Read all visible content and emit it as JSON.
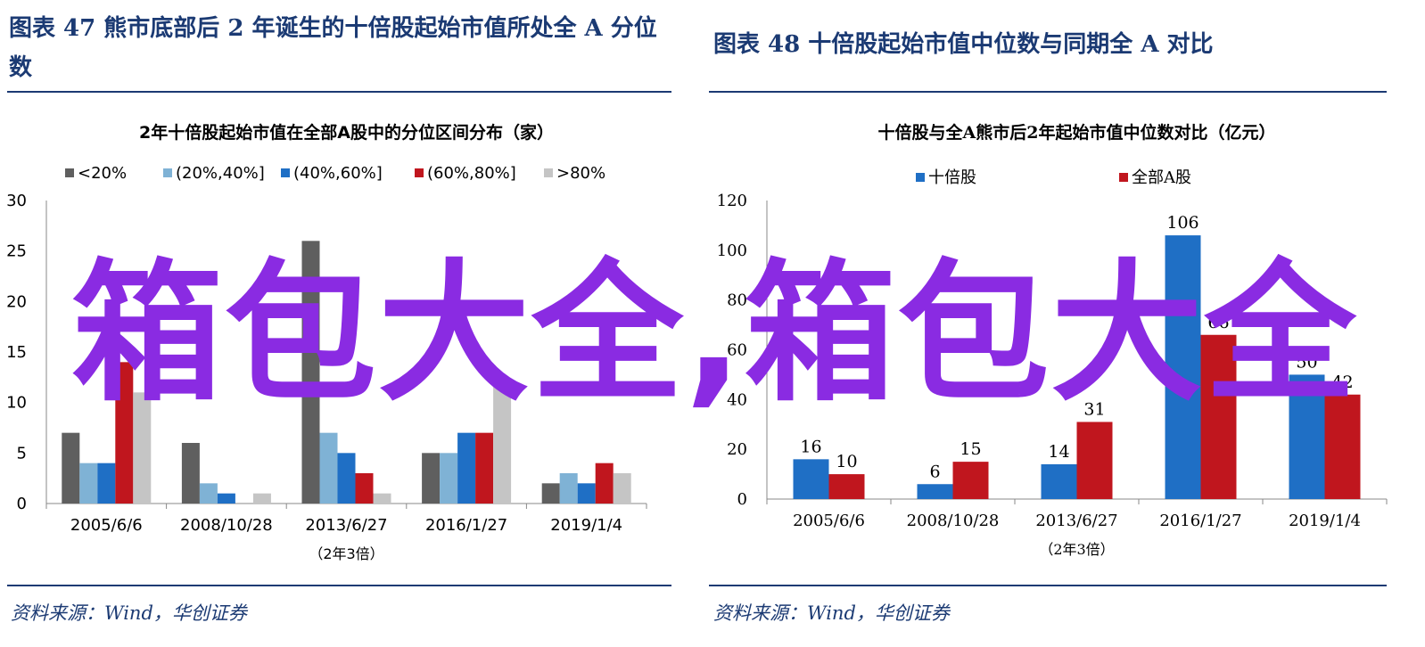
{
  "left": {
    "figure_title": "图表 47   熊市底部后 2 年诞生的十倍股起始市值所处全 A 分位数",
    "source": "资料来源：Wind，华创证券"
  },
  "right": {
    "figure_title": "图表 48   十倍股起始市值中位数与同期全 A 对比",
    "source": "资料来源：Wind，华创证券"
  },
  "watermark": "箱包大全,箱包大全",
  "chart_data": [
    {
      "type": "bar",
      "title": "2年十倍股起始市值在全部A股中的分位区间分布（家）",
      "categories": [
        "2005/6/6",
        "2008/10/28",
        "2013/6/27",
        "2016/1/27",
        "2019/1/4"
      ],
      "xlabel": "（2年3倍）",
      "ylim": [
        0,
        30
      ],
      "yticks": [
        0,
        5,
        10,
        15,
        20,
        25,
        30
      ],
      "legend_position": "top",
      "grid": false,
      "series": [
        {
          "name": "<20%",
          "color": "#5f5f5f",
          "values": [
            7,
            6,
            26,
            5,
            2
          ]
        },
        {
          "name": "(20%,40%]",
          "color": "#7fb2d5",
          "values": [
            4,
            2,
            7,
            5,
            3
          ]
        },
        {
          "name": "(40%,60%]",
          "color": "#1f6fc5",
          "values": [
            4,
            1,
            5,
            7,
            2
          ]
        },
        {
          "name": "(60%,80%]",
          "color": "#c0161e",
          "values": [
            14,
            0,
            3,
            7,
            4
          ]
        },
        {
          "name": ">80%",
          "color": "#c5c5c5",
          "values": [
            11,
            1,
            1,
            12,
            3
          ]
        }
      ]
    },
    {
      "type": "bar",
      "title": "十倍股与全A熊市后2年起始市值中位数对比（亿元）",
      "categories": [
        "2005/6/6",
        "2008/10/28",
        "2013/6/27",
        "2016/1/27",
        "2019/1/4"
      ],
      "xlabel": "（2年3倍）",
      "ylim": [
        0,
        120
      ],
      "yticks": [
        0,
        20,
        40,
        60,
        80,
        100,
        120
      ],
      "legend_position": "top",
      "grid": false,
      "series": [
        {
          "name": "十倍股",
          "color": "#1f6fc5",
          "values": [
            16,
            6,
            14,
            106,
            50
          ]
        },
        {
          "name": "全部A股",
          "color": "#c0161e",
          "values": [
            10,
            15,
            31,
            66,
            42
          ]
        }
      ],
      "data_labels": [
        [
          "16",
          "6",
          "14",
          "106",
          "50"
        ],
        [
          "10",
          "15",
          "31",
          "66",
          "42"
        ]
      ]
    }
  ]
}
